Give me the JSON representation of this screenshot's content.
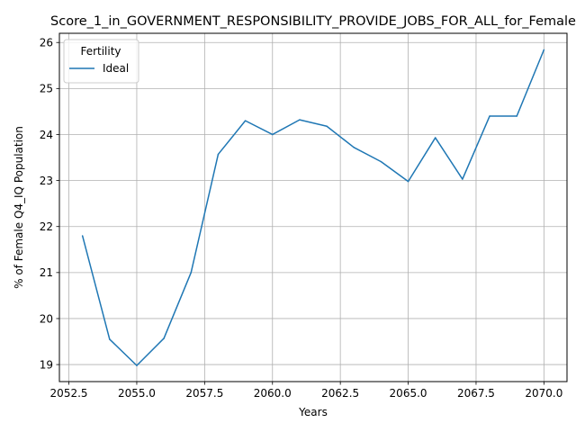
{
  "chart_data": {
    "type": "line",
    "title": "Score_1_in_GOVERNMENT_RESPONSIBILITY_PROVIDE_JOBS_FOR_ALL_for_Female",
    "xlabel": "Years",
    "ylabel": "% of Female Q4_IQ Population",
    "xlim": [
      2052.15,
      2070.85
    ],
    "ylim": [
      18.63,
      26.2
    ],
    "xticks": [
      2052.5,
      2055,
      2057.5,
      2060,
      2062.5,
      2065,
      2067.5,
      2070
    ],
    "xtick_labels": [
      "2052.5",
      "2055.0",
      "2057.5",
      "2060.0",
      "2062.5",
      "2065.0",
      "2067.5",
      "2070.0"
    ],
    "yticks": [
      19,
      20,
      21,
      22,
      23,
      24,
      25,
      26
    ],
    "ytick_labels": [
      "19",
      "20",
      "21",
      "22",
      "23",
      "24",
      "25",
      "26"
    ],
    "grid": true,
    "legend": {
      "title": "Fertility",
      "placement": "top-left"
    },
    "series": [
      {
        "name": "Ideal",
        "color": "#1f77b4",
        "x": [
          2053,
          2054,
          2055,
          2056,
          2057,
          2058,
          2059,
          2060,
          2061,
          2062,
          2063,
          2064,
          2065,
          2066,
          2067,
          2068,
          2069,
          2070
        ],
        "y": [
          21.8,
          19.55,
          18.98,
          19.57,
          21.0,
          23.57,
          24.3,
          24.0,
          24.32,
          24.18,
          23.72,
          23.41,
          22.98,
          23.93,
          23.03,
          24.4,
          24.4,
          25.84
        ]
      }
    ]
  }
}
